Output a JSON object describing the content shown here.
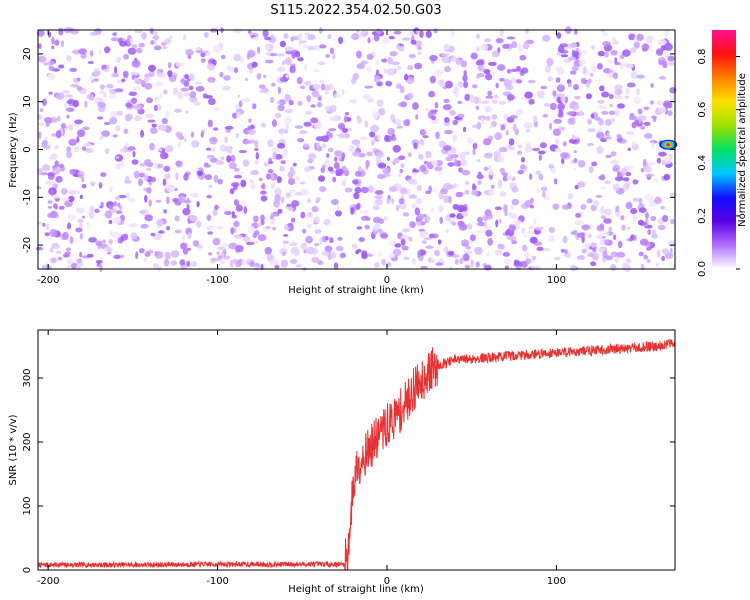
{
  "title": "S115.2022.354.02.50.G03",
  "chart_data": [
    {
      "type": "heatmap",
      "xlabel": "Height of straight line (km)",
      "ylabel": "Frequency (Hz)",
      "xlim": [
        -206,
        170
      ],
      "ylim": [
        -25,
        25
      ],
      "x_ticks": [
        -200,
        -100,
        0,
        100
      ],
      "y_ticks": [
        -20,
        -10,
        0,
        10,
        20
      ],
      "colorbar": {
        "label": "Normalized spectral amplitude",
        "range": [
          0.0,
          0.9
        ],
        "ticks": [
          0.0,
          0.2,
          0.4,
          0.6,
          0.8
        ],
        "colormap": [
          "#ffffff",
          "#b070ff",
          "#5a00e0",
          "#1010ff",
          "#00c8ff",
          "#00e060",
          "#a0e000",
          "#ffe000",
          "#ff8000",
          "#ff1010",
          "#ff1090"
        ]
      },
      "background_amplitude": [
        0.0,
        0.12
      ],
      "features": [
        {
          "label": "peak near 0 Hz at maximum height",
          "x": 166,
          "y": 1,
          "amplitude": 0.9
        }
      ]
    },
    {
      "type": "line",
      "xlabel": "Height of straight line (km)",
      "ylabel": "SNR (10 * v/v)",
      "xlim": [
        -206,
        170
      ],
      "ylim": [
        0,
        375
      ],
      "x_ticks": [
        -200,
        -100,
        0,
        100
      ],
      "y_ticks": [
        0,
        100,
        200,
        300
      ],
      "series": [
        {
          "color": "#e83232",
          "x": [
            -206,
            -150,
            -100,
            -50,
            -25,
            -23,
            -20,
            -18,
            -15,
            -10,
            -5,
            0,
            5,
            10,
            15,
            20,
            25,
            30,
            40,
            60,
            80,
            100,
            120,
            140,
            160,
            170
          ],
          "y": [
            8,
            8,
            9,
            9,
            9,
            30,
            130,
            160,
            175,
            190,
            210,
            225,
            240,
            255,
            280,
            295,
            310,
            320,
            328,
            332,
            336,
            340,
            343,
            346,
            350,
            355
          ]
        }
      ]
    }
  ]
}
